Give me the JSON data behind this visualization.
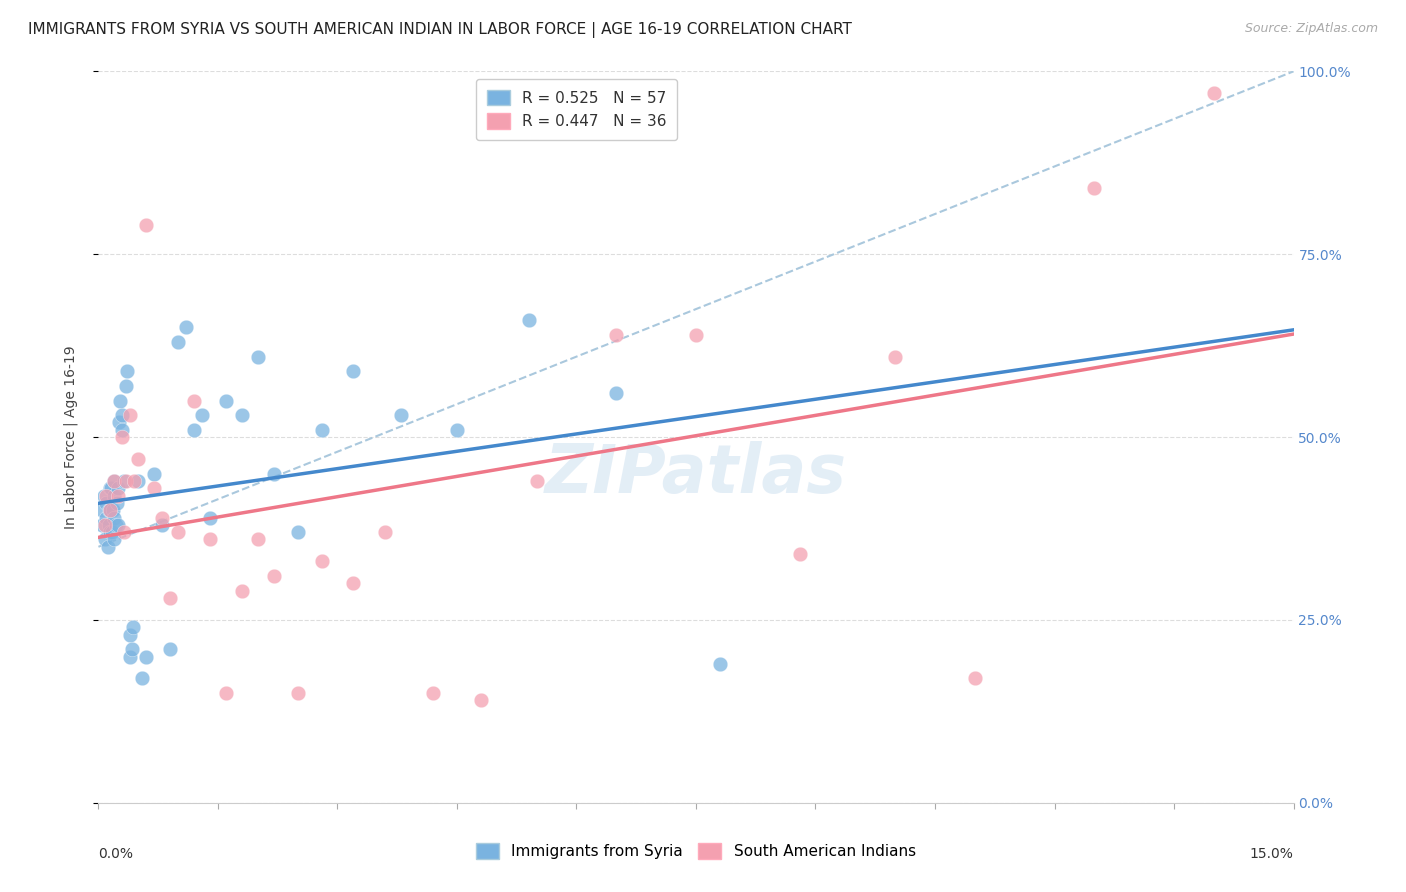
{
  "title": "IMMIGRANTS FROM SYRIA VS SOUTH AMERICAN INDIAN IN LABOR FORCE | AGE 16-19 CORRELATION CHART",
  "source": "Source: ZipAtlas.com",
  "ylabel": "In Labor Force | Age 16-19",
  "legend_label_syria": "Immigrants from Syria",
  "legend_label_sam": "South American Indians",
  "syria_color": "#7ab3e0",
  "sam_color": "#f4a0b0",
  "syria_line_color": "#4488cc",
  "sam_line_color": "#ee7788",
  "diagonal_color": "#aaccdd",
  "xmin": 0.0,
  "xmax": 0.15,
  "ymin": 0.0,
  "ymax": 1.0,
  "ytick_values": [
    0.0,
    0.25,
    0.5,
    0.75,
    1.0
  ],
  "syria_x": [
    0.0005,
    0.0005,
    0.0007,
    0.0008,
    0.001,
    0.001,
    0.0012,
    0.0013,
    0.0013,
    0.0014,
    0.0015,
    0.0015,
    0.0016,
    0.0017,
    0.0018,
    0.0019,
    0.002,
    0.002,
    0.002,
    0.0022,
    0.0023,
    0.0024,
    0.0025,
    0.0026,
    0.0027,
    0.003,
    0.003,
    0.0032,
    0.0034,
    0.0036,
    0.004,
    0.004,
    0.0042,
    0.0044,
    0.005,
    0.0055,
    0.006,
    0.007,
    0.008,
    0.009,
    0.01,
    0.011,
    0.012,
    0.013,
    0.014,
    0.016,
    0.018,
    0.02,
    0.022,
    0.025,
    0.028,
    0.032,
    0.038,
    0.045,
    0.054,
    0.065,
    0.078
  ],
  "syria_y": [
    0.38,
    0.4,
    0.42,
    0.36,
    0.39,
    0.41,
    0.35,
    0.38,
    0.4,
    0.43,
    0.37,
    0.4,
    0.43,
    0.37,
    0.4,
    0.44,
    0.36,
    0.39,
    0.42,
    0.38,
    0.41,
    0.43,
    0.38,
    0.52,
    0.55,
    0.51,
    0.53,
    0.44,
    0.57,
    0.59,
    0.2,
    0.23,
    0.21,
    0.24,
    0.44,
    0.17,
    0.2,
    0.45,
    0.38,
    0.21,
    0.63,
    0.65,
    0.51,
    0.53,
    0.39,
    0.55,
    0.53,
    0.61,
    0.45,
    0.37,
    0.51,
    0.59,
    0.53,
    0.51,
    0.66,
    0.56,
    0.19
  ],
  "sam_x": [
    0.0008,
    0.001,
    0.0015,
    0.002,
    0.0025,
    0.003,
    0.0032,
    0.0035,
    0.004,
    0.0045,
    0.005,
    0.006,
    0.007,
    0.008,
    0.009,
    0.01,
    0.012,
    0.014,
    0.016,
    0.018,
    0.02,
    0.022,
    0.025,
    0.028,
    0.032,
    0.036,
    0.042,
    0.048,
    0.055,
    0.065,
    0.075,
    0.088,
    0.1,
    0.11,
    0.125,
    0.14
  ],
  "sam_y": [
    0.38,
    0.42,
    0.4,
    0.44,
    0.42,
    0.5,
    0.37,
    0.44,
    0.53,
    0.44,
    0.47,
    0.79,
    0.43,
    0.39,
    0.28,
    0.37,
    0.55,
    0.36,
    0.15,
    0.29,
    0.36,
    0.31,
    0.15,
    0.33,
    0.3,
    0.37,
    0.15,
    0.14,
    0.44,
    0.64,
    0.64,
    0.34,
    0.61,
    0.17,
    0.84,
    0.97
  ],
  "background_color": "#ffffff",
  "grid_color": "#dddddd",
  "title_fontsize": 11,
  "axis_label_fontsize": 10,
  "tick_fontsize": 10,
  "legend_fontsize": 11
}
